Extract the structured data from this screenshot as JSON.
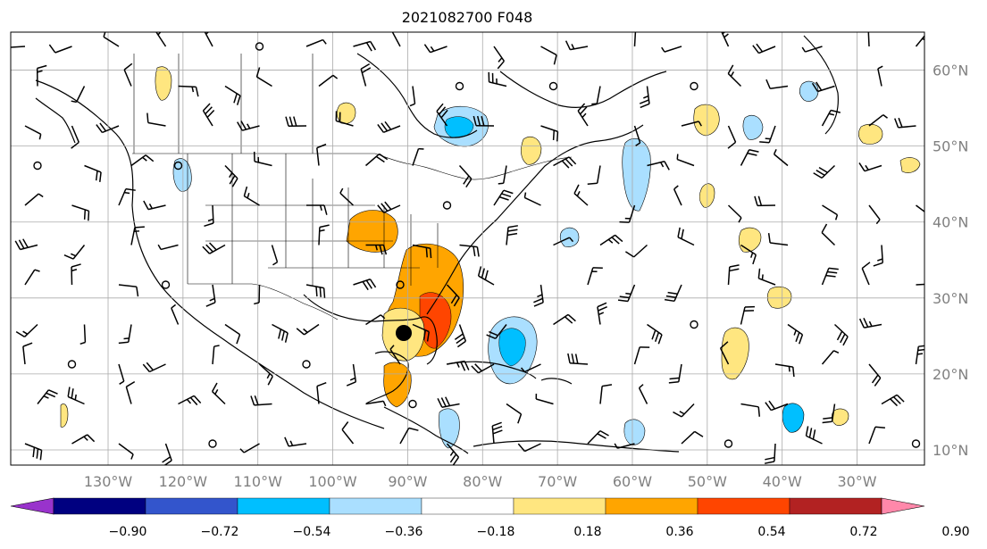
{
  "title": "2021082700 F048",
  "map": {
    "lon_range": [
      -143,
      -21
    ],
    "lat_range": [
      8,
      65
    ],
    "longitude_ticks": [
      {
        "value": -130,
        "label": "130°W"
      },
      {
        "value": -120,
        "label": "120°W"
      },
      {
        "value": -110,
        "label": "110°W"
      },
      {
        "value": -100,
        "label": "100°W"
      },
      {
        "value": -90,
        "label": "90°W"
      },
      {
        "value": -80,
        "label": "80°W"
      },
      {
        "value": -70,
        "label": "70°W"
      },
      {
        "value": -60,
        "label": "60°W"
      },
      {
        "value": -50,
        "label": "50°W"
      },
      {
        "value": -40,
        "label": "40°W"
      },
      {
        "value": -30,
        "label": "30°W"
      }
    ],
    "latitude_ticks": [
      {
        "value": 60,
        "label": "60°N"
      },
      {
        "value": 50,
        "label": "50°N"
      },
      {
        "value": 40,
        "label": "40°N"
      },
      {
        "value": 30,
        "label": "30°N"
      },
      {
        "value": 20,
        "label": "20°N"
      },
      {
        "value": 10,
        "label": "10°N"
      }
    ],
    "gridlines": true
  },
  "colorbar": {
    "ticks": [
      "−0.90",
      "−0.72",
      "−0.54",
      "−0.36",
      "−0.18",
      "0.18",
      "0.36",
      "0.54",
      "0.72",
      "0.90"
    ],
    "under_color": "#9933cc",
    "over_color": "#ff88aa",
    "colors": [
      "#000080",
      "#3355cc",
      "#00bfff",
      "#aadfff",
      "#ffffff",
      "#ffe680",
      "#ffa500",
      "#ff4500",
      "#b22222"
    ]
  },
  "colors": {
    "positive_weak": "#ffe680",
    "positive_mid": "#ffa500",
    "positive_strong": "#ff4500",
    "negative_weak": "#aadfff",
    "negative_mid": "#00bfff",
    "gridline": "#aaaaaa",
    "tick_label": "#808080"
  }
}
